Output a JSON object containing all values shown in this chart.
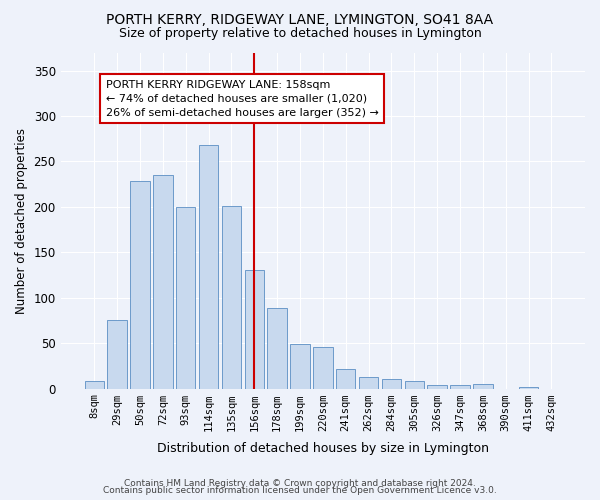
{
  "title": "PORTH KERRY, RIDGEWAY LANE, LYMINGTON, SO41 8AA",
  "subtitle": "Size of property relative to detached houses in Lymington",
  "xlabel": "Distribution of detached houses by size in Lymington",
  "ylabel": "Number of detached properties",
  "bar_color": "#c8d9ee",
  "bar_edge_color": "#5b8ec4",
  "background_color": "#eef2fa",
  "categories": [
    "8sqm",
    "29sqm",
    "50sqm",
    "72sqm",
    "93sqm",
    "114sqm",
    "135sqm",
    "156sqm",
    "178sqm",
    "199sqm",
    "220sqm",
    "241sqm",
    "262sqm",
    "284sqm",
    "305sqm",
    "326sqm",
    "347sqm",
    "368sqm",
    "390sqm",
    "411sqm",
    "432sqm"
  ],
  "values": [
    8,
    76,
    228,
    235,
    200,
    268,
    201,
    131,
    89,
    49,
    46,
    22,
    13,
    10,
    8,
    4,
    4,
    5,
    0,
    2,
    0
  ],
  "vline_index": 7,
  "vline_color": "#cc0000",
  "annotation_text": "PORTH KERRY RIDGEWAY LANE: 158sqm\n← 74% of detached houses are smaller (1,020)\n26% of semi-detached houses are larger (352) →",
  "ylim": [
    0,
    370
  ],
  "yticks": [
    0,
    50,
    100,
    150,
    200,
    250,
    300,
    350
  ],
  "footer_line1": "Contains HM Land Registry data © Crown copyright and database right 2024.",
  "footer_line2": "Contains public sector information licensed under the Open Government Licence v3.0."
}
